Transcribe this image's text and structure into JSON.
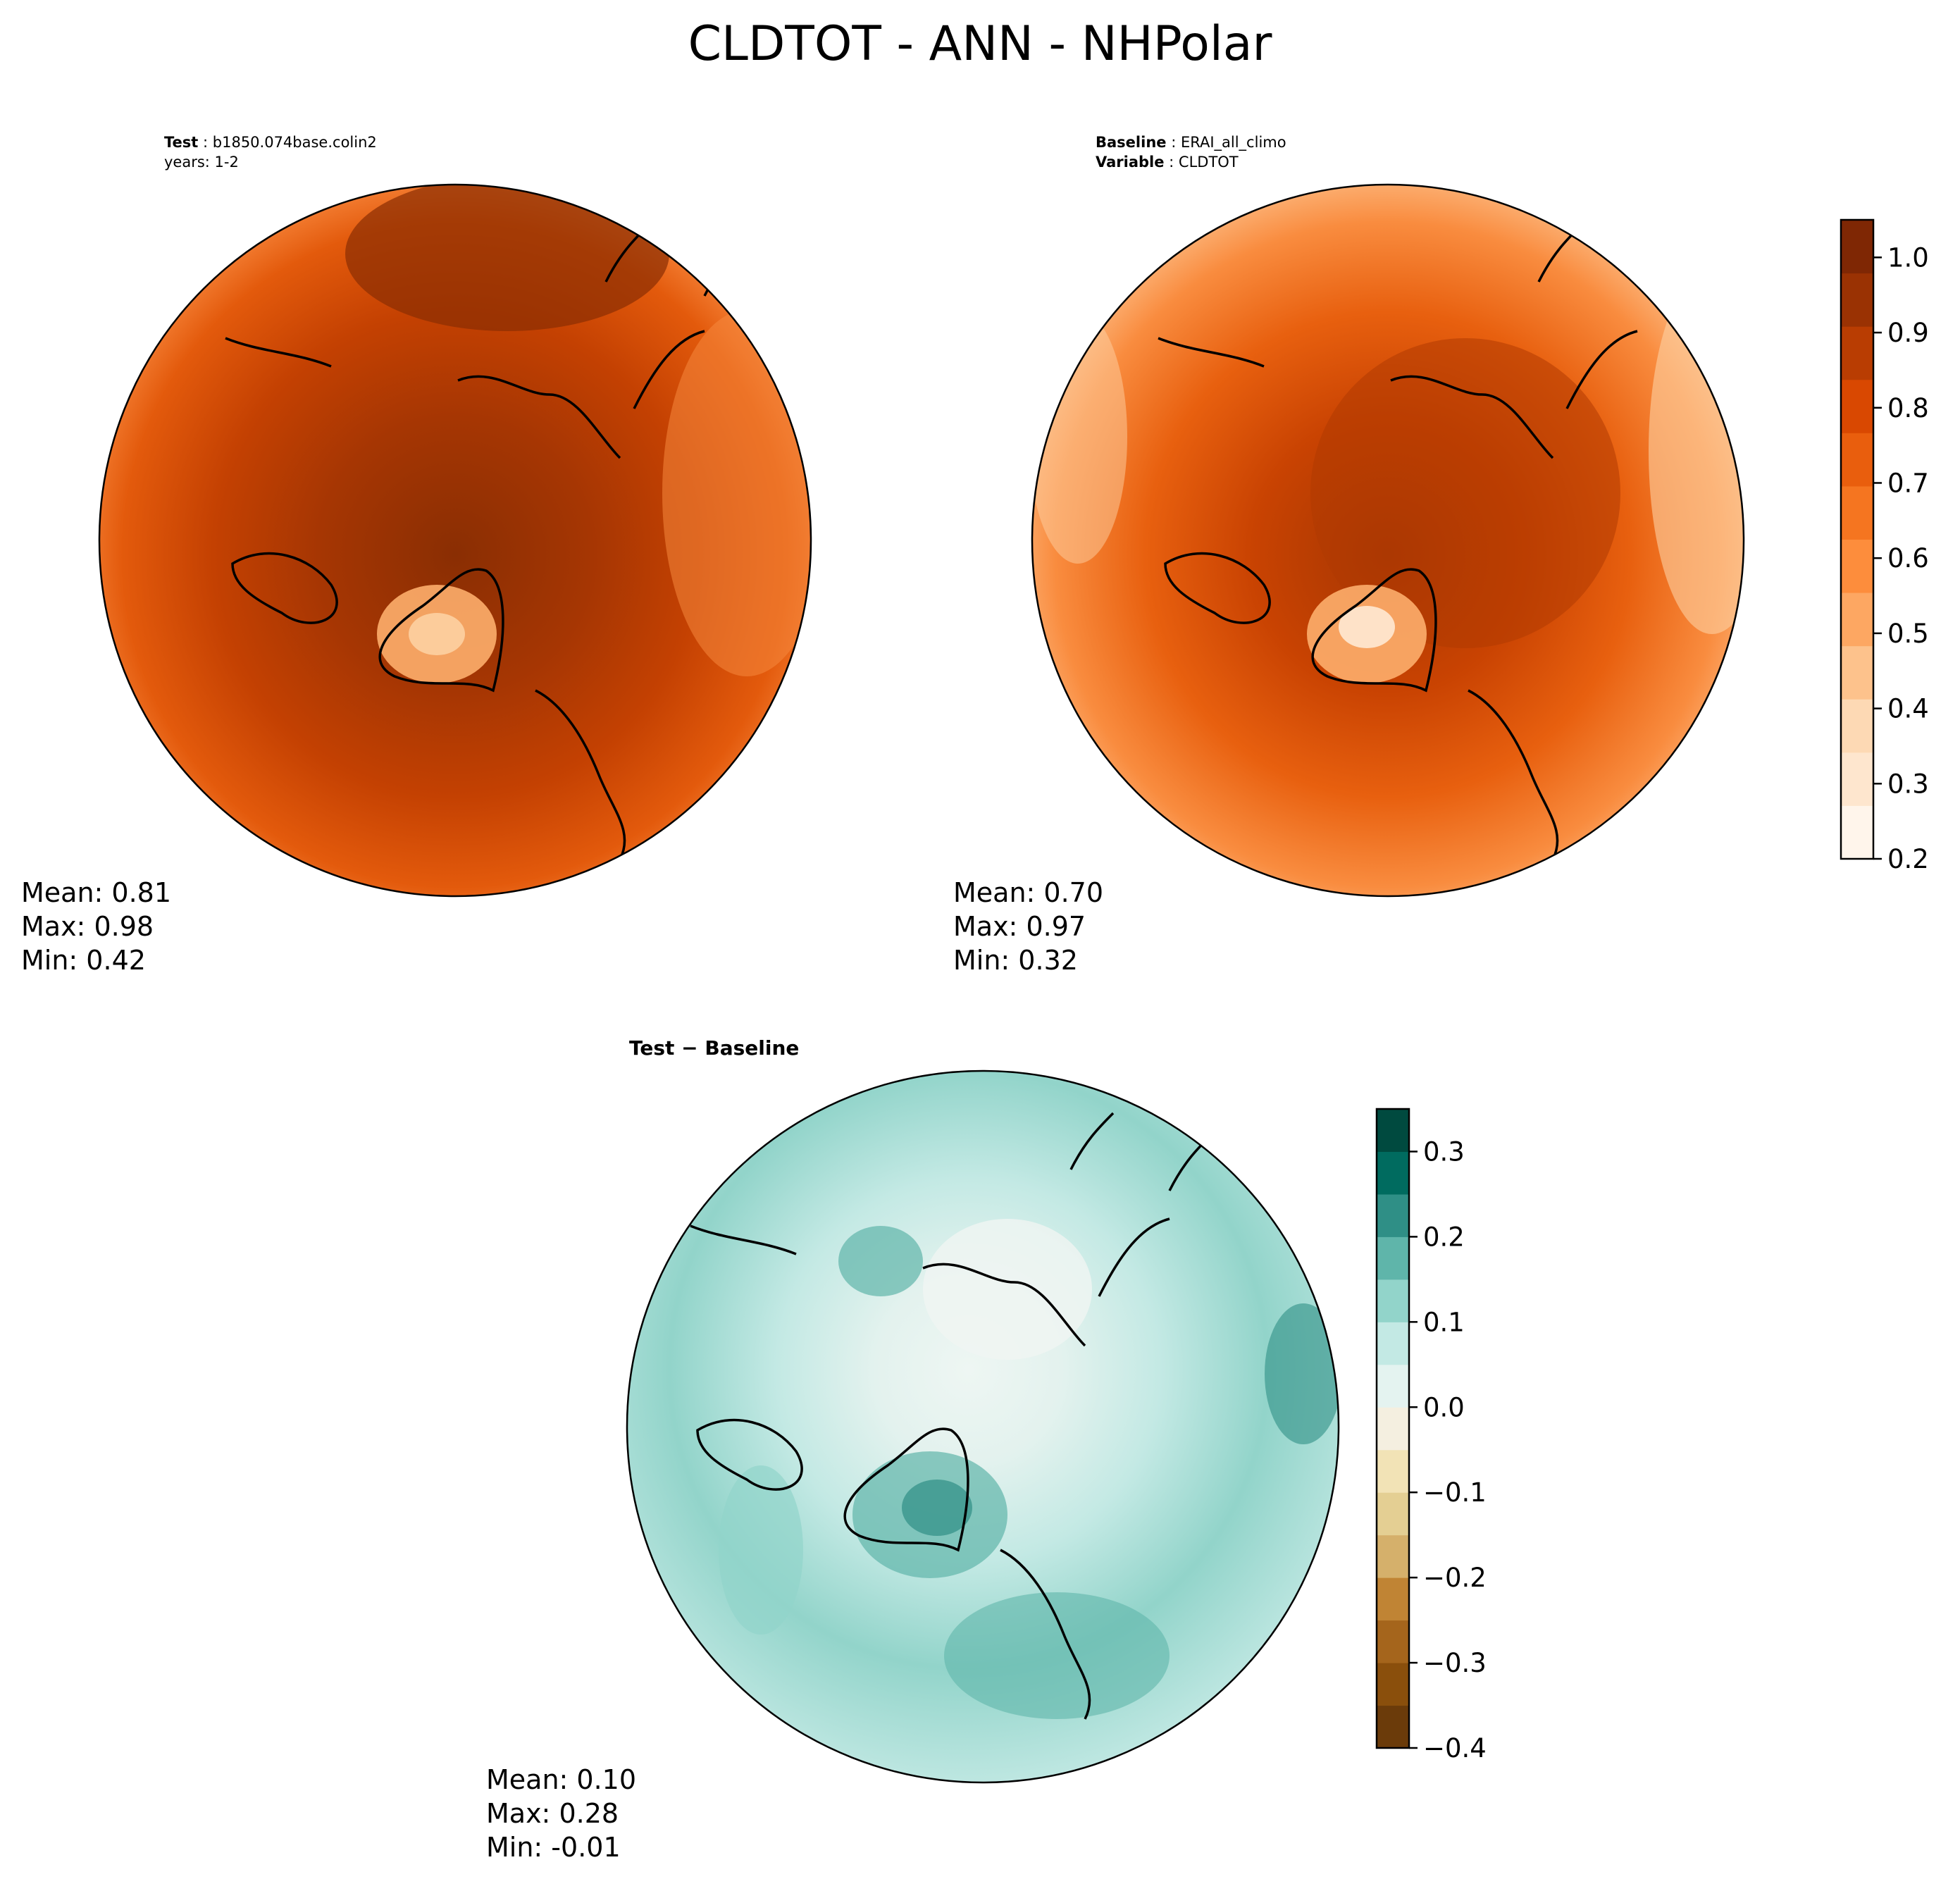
{
  "figure": {
    "title": "CLDTOT - ANN - NHPolar"
  },
  "test_panel": {
    "header_key": "Test",
    "header_value": "b1850.074base.colin2",
    "header_line2": "years: 1-2",
    "stats": {
      "mean": "Mean:  0.81",
      "max": "Max:  0.98",
      "min": "Min:  0.42"
    }
  },
  "baseline_panel": {
    "header_key": "Baseline",
    "header_value": "ERAI_all_climo",
    "header_key2": "Variable",
    "header_value2": "CLDTOT",
    "stats": {
      "mean": "Mean:  0.70",
      "max": "Max:  0.97",
      "min": "Min:  0.32"
    }
  },
  "diff_panel": {
    "title": "Test − Baseline",
    "stats": {
      "mean": "Mean:  0.10",
      "max": "Max:  0.28",
      "min": "Min: -0.01"
    }
  },
  "chart_data": [
    {
      "type": "heatmap",
      "projection": "north-polar-stereographic",
      "panel": "test",
      "variable": "CLDTOT",
      "mean": 0.81,
      "max": 0.98,
      "min": 0.42,
      "colormap": "Oranges",
      "colorbar_shared_with": "baseline"
    },
    {
      "type": "heatmap",
      "projection": "north-polar-stereographic",
      "panel": "baseline",
      "variable": "CLDTOT",
      "mean": 0.7,
      "max": 0.97,
      "min": 0.32,
      "colormap": "Oranges",
      "colorbar": {
        "range": [
          0.2,
          1.05
        ],
        "ticks": [
          0.2,
          0.3,
          0.4,
          0.5,
          0.6,
          0.7,
          0.8,
          0.9,
          1.0
        ],
        "tick_labels": [
          "0.2",
          "0.3",
          "0.4",
          "0.5",
          "0.6",
          "0.7",
          "0.8",
          "0.9",
          "1.0"
        ],
        "colors": [
          "#fff5eb",
          "#fee6ce",
          "#fdd9b4",
          "#fdc28c",
          "#fda762",
          "#fd8d3c",
          "#f57520",
          "#e95e0d",
          "#d94801",
          "#b93d02",
          "#9a3203",
          "#7f2704"
        ]
      }
    },
    {
      "type": "heatmap",
      "projection": "north-polar-stereographic",
      "panel": "difference",
      "mean": 0.1,
      "max": 0.28,
      "min": -0.01,
      "colormap": "BrBG",
      "colorbar": {
        "range": [
          -0.4,
          0.35
        ],
        "ticks": [
          -0.4,
          -0.3,
          -0.2,
          -0.1,
          0.0,
          0.1,
          0.2,
          0.3
        ],
        "tick_labels": [
          "−0.4",
          "−0.3",
          "−0.2",
          "−0.1",
          "0.0",
          "0.1",
          "0.2",
          "0.3"
        ],
        "colors": [
          "#6b3b0a",
          "#8a4f0c",
          "#a5651c",
          "#c08434",
          "#d5b06b",
          "#e4cf93",
          "#f2e3b6",
          "#f4efe0",
          "#e4f3f0",
          "#c3e9e4",
          "#92d4ca",
          "#5fb5aa",
          "#2f8f86",
          "#006b5f",
          "#004a3f"
        ]
      }
    }
  ]
}
